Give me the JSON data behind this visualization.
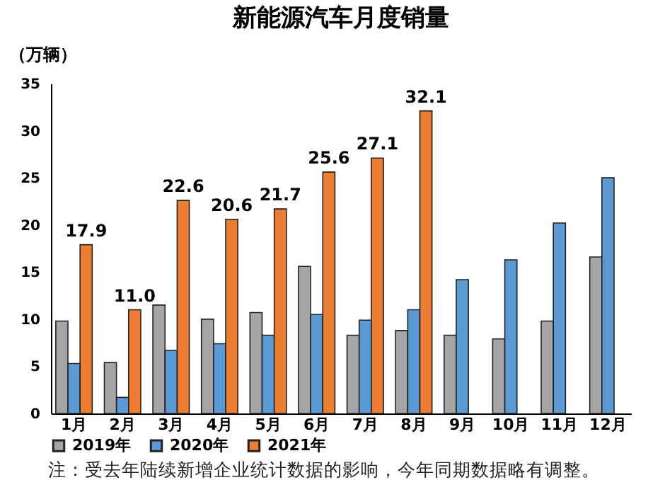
{
  "chart_data": {
    "type": "bar",
    "title": "新能源汽车月度销量",
    "ylabel": "（万辆）",
    "categories": [
      "1月",
      "2月",
      "3月",
      "4月",
      "5月",
      "6月",
      "7月",
      "8月",
      "9月",
      "10月",
      "11月",
      "12月"
    ],
    "series": [
      {
        "name": "2019年",
        "color": "#a5a5a5",
        "values": [
          9.8,
          5.4,
          11.5,
          10.0,
          10.7,
          15.6,
          8.3,
          8.8,
          8.3,
          7.9,
          9.8,
          16.6
        ]
      },
      {
        "name": "2020年",
        "color": "#5b9bd5",
        "values": [
          5.3,
          1.7,
          6.7,
          7.4,
          8.3,
          10.5,
          9.9,
          11.0,
          14.2,
          16.3,
          20.2,
          25.0
        ]
      },
      {
        "name": "2021年",
        "color": "#ed7d31",
        "values": [
          17.9,
          11.0,
          22.6,
          20.6,
          21.7,
          25.6,
          27.1,
          32.1,
          null,
          null,
          null,
          null
        ],
        "value_labels": [
          "17.9",
          "11.0",
          "22.6",
          "20.6",
          "21.7",
          "25.6",
          "27.1",
          "32.1",
          null,
          null,
          null,
          null
        ]
      }
    ],
    "ylim": [
      0,
      35
    ],
    "yticks": [
      0,
      5,
      10,
      15,
      20,
      25,
      30,
      35
    ],
    "grid": false,
    "legend": "bottom",
    "annotations": [
      "注：受去年陆续新增企业统计数据的影响，今年同期数据略有调整。"
    ]
  }
}
